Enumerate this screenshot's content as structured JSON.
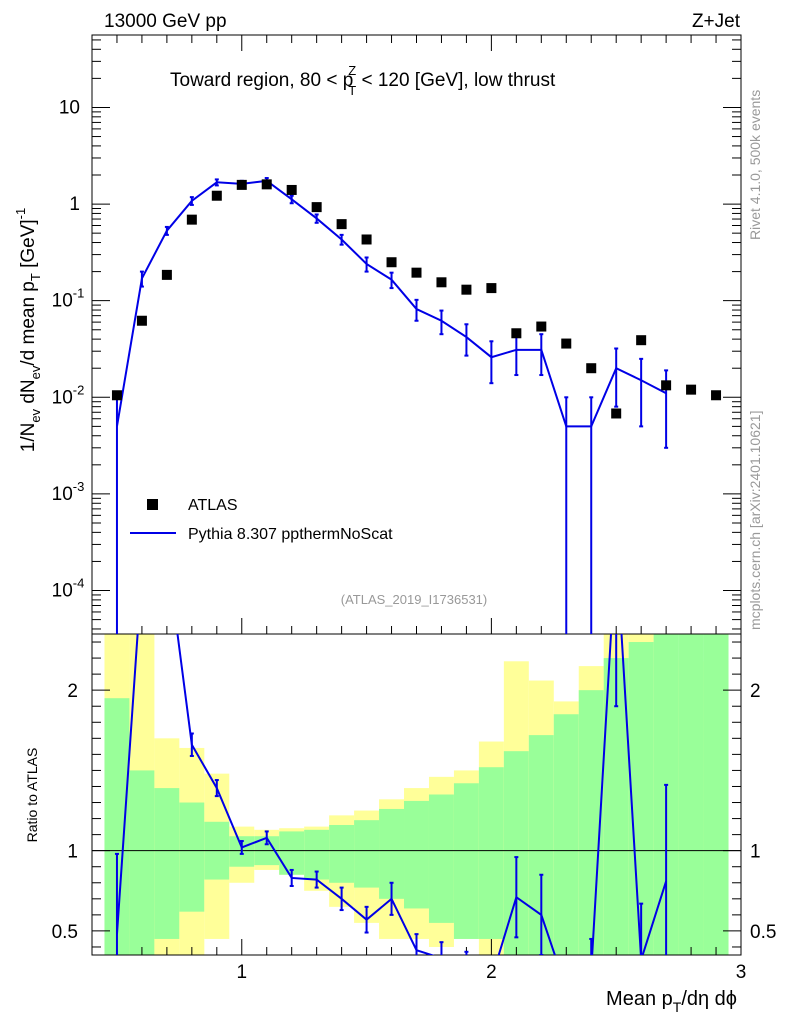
{
  "header": {
    "energy": "13000 GeV pp",
    "process": "Z+Jet"
  },
  "side": {
    "rivet": "Rivet 4.1.0,  500k events",
    "mcplots": "mcplots.cern.ch [arXiv:2401.10621]"
  },
  "chart_data": {
    "type": "scatter",
    "title_parts": [
      "Toward region, 80 < p",
      "Z",
      "T",
      " < 120 [GeV], low thrust"
    ],
    "analysis_label": "(ATLAS_2019_I1736531)",
    "xlabel_parts": [
      "Mean p",
      "T",
      "/dη dϕ"
    ],
    "ylabel_parts": [
      "1/N",
      "ev",
      " dN",
      "ev",
      "/d mean p",
      "T",
      " [GeV]",
      "-1"
    ],
    "ratio_ylabel": "Ratio to ATLAS",
    "xlim": [
      0.4,
      3.0
    ],
    "ylim_log10": [
      -4.45,
      1.75
    ],
    "ratio_ylim": [
      0.35,
      2.35
    ],
    "x_ticks": [
      1,
      2,
      3
    ],
    "y_ticks": [
      {
        "base": "10",
        "exp": "-4",
        "value_log10": -4
      },
      {
        "base": "10",
        "exp": "-3",
        "value_log10": -3
      },
      {
        "base": "10",
        "exp": "-2",
        "value_log10": -2
      },
      {
        "base": "10",
        "exp": "-1",
        "value_log10": -1
      },
      {
        "base": "1",
        "exp": "",
        "value_log10": 0
      },
      {
        "base": "10",
        "exp": "",
        "value_log10": 1
      }
    ],
    "ratio_ticks": [
      "0.5",
      "1",
      "2"
    ],
    "ratio_tick_values": [
      0.5,
      1,
      2
    ],
    "legend": [
      {
        "label": "ATLAS",
        "style": "marker"
      },
      {
        "label": "Pythia 8.307 ppthermNoScat",
        "style": "line"
      }
    ],
    "series": [
      {
        "name": "ATLAS",
        "color": "#000000",
        "x": [
          0.5,
          0.6,
          0.7,
          0.8,
          0.9,
          1.0,
          1.1,
          1.2,
          1.3,
          1.4,
          1.5,
          1.6,
          1.7,
          1.8,
          1.9,
          2.0,
          2.1,
          2.2,
          2.3,
          2.4,
          2.5,
          2.6,
          2.7,
          2.8,
          2.9
        ],
        "y": [
          0.0105,
          0.062,
          0.185,
          0.69,
          1.22,
          1.58,
          1.6,
          1.4,
          0.93,
          0.62,
          0.43,
          0.25,
          0.195,
          0.155,
          0.13,
          0.135,
          0.046,
          0.054,
          0.036,
          0.02,
          0.0068,
          0.039,
          0.0133,
          0.012,
          0.0105
        ]
      },
      {
        "name": "Pythia 8.307 ppthermNoScat",
        "color": "#0000e6",
        "x": [
          0.5,
          0.6,
          0.7,
          0.8,
          0.9,
          1.0,
          1.1,
          1.2,
          1.3,
          1.4,
          1.5,
          1.6,
          1.7,
          1.8,
          1.9,
          2.0,
          2.1,
          2.2,
          2.3,
          2.4,
          2.5,
          2.6,
          2.7
        ],
        "y": [
          0.005,
          0.17,
          0.53,
          1.08,
          1.68,
          1.62,
          1.74,
          1.12,
          0.71,
          0.43,
          0.24,
          0.165,
          0.082,
          0.062,
          0.042,
          0.026,
          0.031,
          0.031,
          0.005,
          0.005,
          0.02,
          0.015,
          0.011
        ],
        "err_lo": [
          0.005,
          0.03,
          0.05,
          0.1,
          0.12,
          0.12,
          0.12,
          0.1,
          0.07,
          0.05,
          0.04,
          0.03,
          0.02,
          0.017,
          0.015,
          0.012,
          0.014,
          0.014,
          0.005,
          0.005,
          0.012,
          0.01,
          0.008
        ],
        "err_hi": [
          0.005,
          0.03,
          0.05,
          0.1,
          0.12,
          0.12,
          0.12,
          0.1,
          0.07,
          0.05,
          0.04,
          0.03,
          0.02,
          0.017,
          0.015,
          0.012,
          0.014,
          0.014,
          0.005,
          0.005,
          0.012,
          0.01,
          0.008
        ]
      }
    ],
    "ratio": {
      "x": [
        0.5,
        0.6,
        0.7,
        0.8,
        0.9,
        1.0,
        1.1,
        1.2,
        1.3,
        1.4,
        1.5,
        1.6,
        1.7,
        1.8,
        1.9,
        2.0,
        2.1,
        2.2,
        2.3,
        2.4,
        2.5,
        2.6,
        2.7
      ],
      "y": [
        0.48,
        2.74,
        2.86,
        1.66,
        1.39,
        1.02,
        1.08,
        0.83,
        0.82,
        0.7,
        0.57,
        0.7,
        0.38,
        0.33,
        0.27,
        0.2,
        0.71,
        0.6,
        0.14,
        0.25,
        2.9,
        0.32,
        0.81
      ],
      "err": [
        0.5,
        0.1,
        0.1,
        0.07,
        0.05,
        0.04,
        0.04,
        0.05,
        0.05,
        0.07,
        0.08,
        0.1,
        0.1,
        0.1,
        0.1,
        0.1,
        0.25,
        0.25,
        0.2,
        0.2,
        1.0,
        0.35,
        0.6
      ]
    },
    "bands": {
      "edges": [
        0.45,
        0.55,
        0.65,
        0.75,
        0.85,
        0.95,
        1.05,
        1.15,
        1.25,
        1.35,
        1.45,
        1.55,
        1.65,
        1.75,
        1.85,
        1.95,
        2.05,
        2.15,
        2.25,
        2.35,
        2.45,
        2.55,
        2.65,
        2.75,
        2.85,
        2.95
      ],
      "stat_lo": [
        0.3,
        0.3,
        0.45,
        0.62,
        0.82,
        0.9,
        0.91,
        0.85,
        0.82,
        0.8,
        0.77,
        0.7,
        0.64,
        0.55,
        0.45,
        0.45,
        0.35,
        0.3,
        0.3,
        0.3,
        0.3,
        0.3,
        0.3,
        0.3,
        0.3
      ],
      "stat_hi": [
        1.95,
        1.5,
        1.39,
        1.3,
        1.18,
        1.09,
        1.09,
        1.12,
        1.13,
        1.16,
        1.19,
        1.26,
        1.31,
        1.35,
        1.42,
        1.52,
        1.62,
        1.72,
        1.85,
        2.0,
        2.2,
        2.3,
        2.4,
        2.4,
        2.4
      ],
      "tot_lo": [
        0.3,
        0.3,
        0.3,
        0.3,
        0.45,
        0.8,
        0.88,
        0.85,
        0.75,
        0.65,
        0.55,
        0.45,
        0.45,
        0.4,
        0.45,
        0.3,
        0.3,
        0.3,
        0.3,
        0.3,
        0.3,
        0.3,
        0.3,
        0.3,
        0.3
      ],
      "tot_hi": [
        2.4,
        2.4,
        1.7,
        1.64,
        1.48,
        1.15,
        1.13,
        1.14,
        1.15,
        1.22,
        1.25,
        1.32,
        1.39,
        1.46,
        1.5,
        1.68,
        2.18,
        2.06,
        1.93,
        2.15,
        2.35,
        2.4,
        2.4,
        2.19,
        2.18
      ]
    }
  },
  "colors": {
    "data": "#000000",
    "mc": "#0000e6",
    "band_stat": "#99ff99",
    "band_total": "#ffff99",
    "side_text": "#999999"
  }
}
